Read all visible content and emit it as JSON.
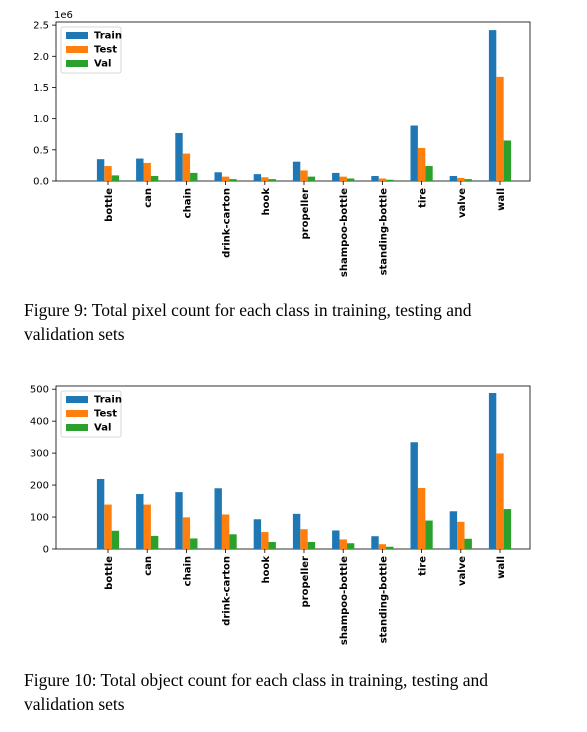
{
  "chart_data": [
    {
      "type": "bar",
      "multiplier_label": "1e6",
      "categories": [
        "bottle",
        "can",
        "chain",
        "drink-carton",
        "hook",
        "propeller",
        "shampoo-bottle",
        "standing-bottle",
        "tire",
        "valve",
        "wall"
      ],
      "series": [
        {
          "name": "Train",
          "color": "#1f77b4",
          "values": [
            0.35,
            0.36,
            0.77,
            0.14,
            0.11,
            0.31,
            0.13,
            0.08,
            0.89,
            0.08,
            2.42
          ]
        },
        {
          "name": "Test",
          "color": "#ff7f0e",
          "values": [
            0.24,
            0.29,
            0.44,
            0.07,
            0.06,
            0.17,
            0.07,
            0.04,
            0.53,
            0.05,
            1.67
          ]
        },
        {
          "name": "Val",
          "color": "#2ca02c",
          "values": [
            0.09,
            0.08,
            0.13,
            0.03,
            0.03,
            0.07,
            0.04,
            0.02,
            0.24,
            0.03,
            0.65
          ]
        }
      ],
      "yticks": [
        "0.0",
        "0.5",
        "1.0",
        "1.5",
        "2.0",
        "2.5"
      ],
      "ylim": [
        0,
        2.55
      ],
      "legend": "top-left",
      "grid": false
    },
    {
      "type": "bar",
      "categories": [
        "bottle",
        "can",
        "chain",
        "drink-carton",
        "hook",
        "propeller",
        "shampoo-bottle",
        "standing-bottle",
        "tire",
        "valve",
        "wall"
      ],
      "series": [
        {
          "name": "Train",
          "color": "#1f77b4",
          "values": [
            219,
            172,
            178,
            190,
            93,
            110,
            58,
            40,
            334,
            118,
            488
          ]
        },
        {
          "name": "Test",
          "color": "#ff7f0e",
          "values": [
            139,
            139,
            99,
            108,
            53,
            62,
            30,
            15,
            191,
            85,
            299
          ]
        },
        {
          "name": "Val",
          "color": "#2ca02c",
          "values": [
            57,
            41,
            33,
            46,
            22,
            22,
            18,
            7,
            89,
            32,
            125
          ]
        }
      ],
      "yticks": [
        "0",
        "100",
        "200",
        "300",
        "400",
        "500"
      ],
      "ylim": [
        0,
        510
      ],
      "legend": "top-left",
      "grid": false
    }
  ],
  "captions": {
    "figure9": "Figure 9: Total pixel count for each class in training, testing and validation sets",
    "figure10": "Figure 10: Total object count for each class in training, testing and validation sets"
  }
}
